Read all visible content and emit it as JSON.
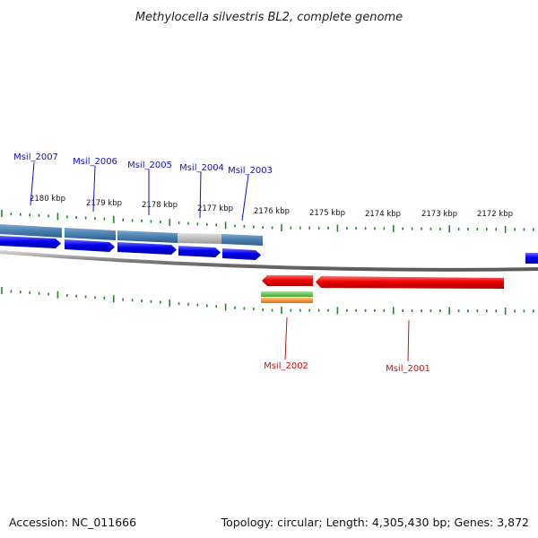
{
  "title": "Methylocella silvestris BL2, complete genome",
  "footer": {
    "accession": "Accession: NC_011666",
    "summary": "Topology: circular; Length: 4,305,430 bp; Genes: 3,872"
  },
  "kbp_labels": [
    "2180 kbp",
    "2179 kbp",
    "2178 kbp",
    "2177 kbp",
    "2176 kbp",
    "2175 kbp",
    "2174 kbp",
    "2173 kbp",
    "2172 kbp"
  ],
  "forward_genes": [
    "Msil_2007",
    "Msil_2006",
    "Msil_2005",
    "Msil_2004",
    "Msil_2003"
  ],
  "reverse_genes": [
    "Msil_2002",
    "Msil_2001"
  ],
  "colors": {
    "forward_cds": "#0000ee",
    "forward_gene_band": "#4a7fb0",
    "forward_gene_band_grey": "#bdbdbd",
    "reverse_cds": "#ee0000",
    "green_feature": "#55c840",
    "orange_feature": "#f08c28",
    "backbone": "#8a8a8a",
    "tick": "#1f8a1f",
    "forward_label": "#1010cc",
    "reverse_label": "#cc1010"
  }
}
